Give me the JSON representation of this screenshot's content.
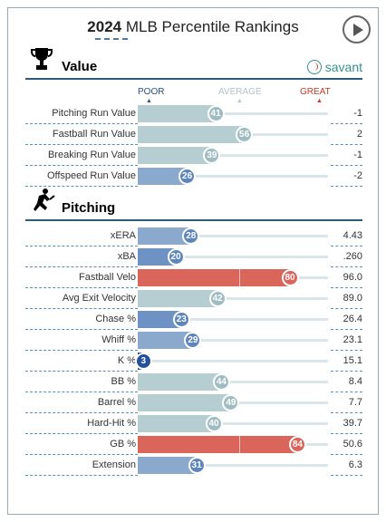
{
  "header": {
    "year": "2024",
    "title": "MLB Percentile Rankings"
  },
  "sections": {
    "value": {
      "label": "Value",
      "brand": "savant"
    },
    "pitching": {
      "label": "Pitching"
    }
  },
  "scale": {
    "poor": "POOR",
    "average": "AVERAGE",
    "great": "GREAT"
  },
  "colors": {
    "poor_blue": "#3d6db0",
    "cool_blue": "#7e9fc8",
    "neutral": "#b6cdd2",
    "hot_red": "#d9655b",
    "dark_blue": "#23509a"
  },
  "value_rows": [
    {
      "metric": "Pitching Run Value",
      "percentile": 41,
      "value": "-1"
    },
    {
      "metric": "Fastball Run Value",
      "percentile": 56,
      "value": "2"
    },
    {
      "metric": "Breaking Run Value",
      "percentile": 39,
      "value": "-1"
    },
    {
      "metric": "Offspeed Run Value",
      "percentile": 26,
      "value": "-2"
    }
  ],
  "pitching_rows": [
    {
      "metric": "xERA",
      "percentile": 28,
      "value": "4.43"
    },
    {
      "metric": "xBA",
      "percentile": 20,
      "value": ".260"
    },
    {
      "metric": "Fastball Velo",
      "percentile": 80,
      "value": "96.0"
    },
    {
      "metric": "Avg Exit Velocity",
      "percentile": 42,
      "value": "89.0"
    },
    {
      "metric": "Chase %",
      "percentile": 23,
      "value": "26.4"
    },
    {
      "metric": "Whiff %",
      "percentile": 29,
      "value": "23.1"
    },
    {
      "metric": "K %",
      "percentile": 3,
      "value": "15.1"
    },
    {
      "metric": "BB %",
      "percentile": 44,
      "value": "8.4"
    },
    {
      "metric": "Barrel %",
      "percentile": 49,
      "value": "7.7"
    },
    {
      "metric": "Hard-Hit %",
      "percentile": 40,
      "value": "39.7"
    },
    {
      "metric": "GB %",
      "percentile": 84,
      "value": "50.6"
    },
    {
      "metric": "Extension",
      "percentile": 31,
      "value": "6.3"
    }
  ]
}
